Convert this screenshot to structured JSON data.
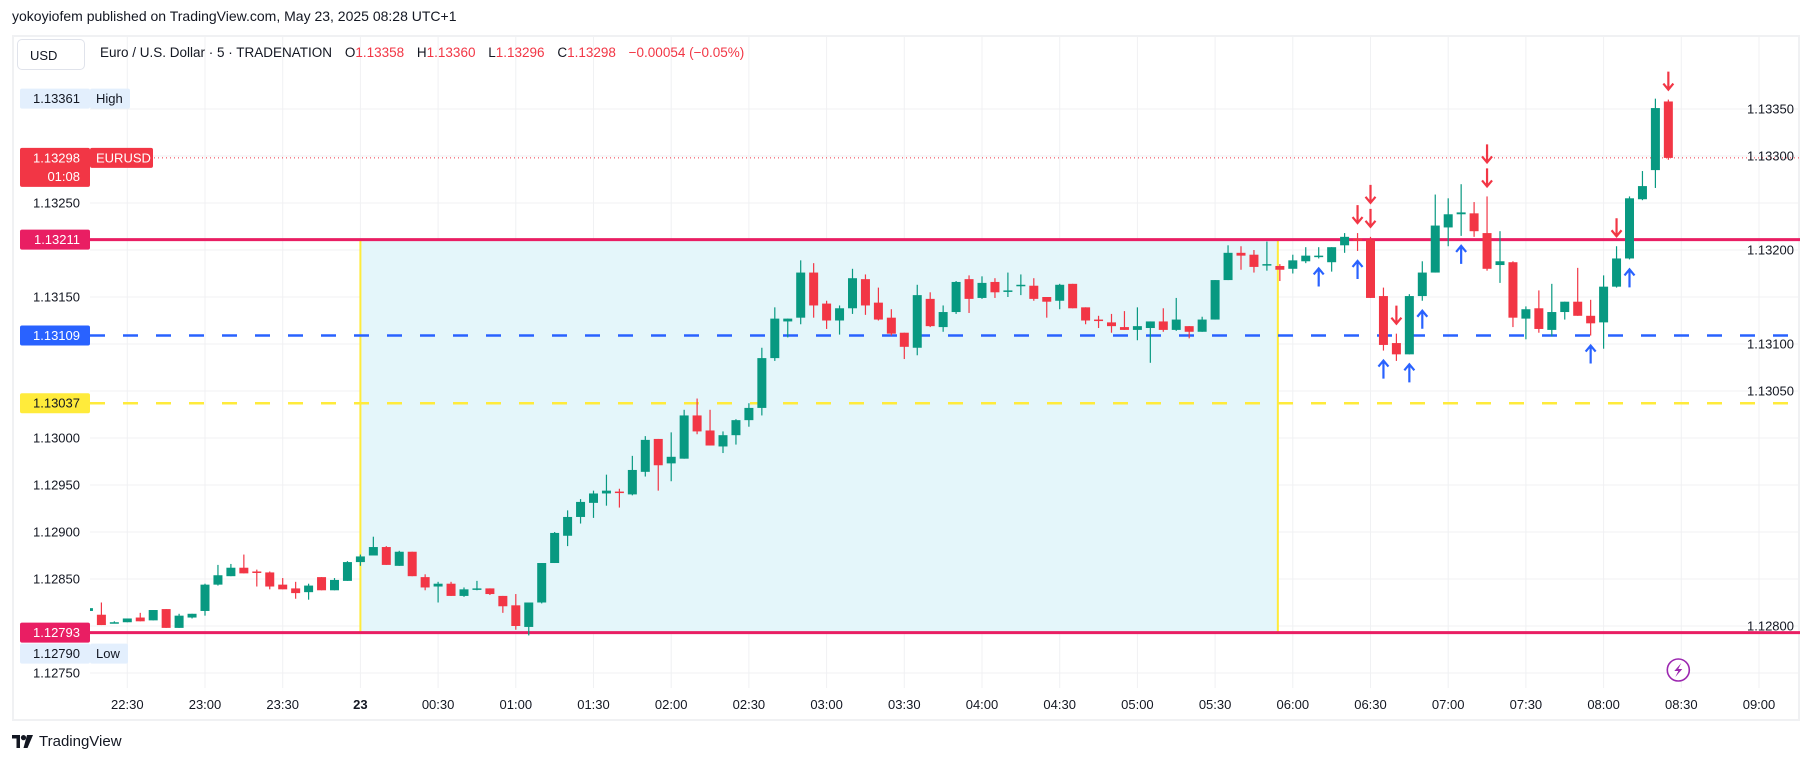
{
  "publish_info": "yokoyiofem published on TradingView.com, May 23, 2025 08:28 UTC+1",
  "header": {
    "currency_button": "USD",
    "symbol_desc": "Euro / U.S. Dollar · 5 · TRADENATION",
    "o_label": "O",
    "o": "1.13358",
    "h_label": "H",
    "h": "1.13360",
    "l_label": "L",
    "l": "1.13296",
    "c_label": "C",
    "c": "1.13298",
    "change": "−0.00054 (−0.05%)"
  },
  "price_labels": {
    "high": {
      "value": "1.13361",
      "tag": "High"
    },
    "low": {
      "value": "1.12790",
      "tag": "Low"
    },
    "current": {
      "value": "1.13298",
      "countdown": "01:08",
      "tag": "EURUSD"
    }
  },
  "horizontal_lines": [
    {
      "price": 1.13211,
      "label": "1.13211",
      "color": "#e91e63",
      "style": "solid",
      "text_color": "#ffffff"
    },
    {
      "price": 1.13109,
      "label": "1.13109",
      "color": "#2962ff",
      "style": "dashed",
      "text_color": "#ffffff"
    },
    {
      "price": 1.13037,
      "label": "1.13037",
      "color": "#ffeb3b",
      "style": "dashed",
      "text_color": "#131722"
    },
    {
      "price": 1.12793,
      "label": "1.12793",
      "color": "#e91e63",
      "style": "solid",
      "text_color": "#ffffff"
    }
  ],
  "zone": {
    "start": "00:00",
    "end": "05:55",
    "top": 1.13211,
    "bottom": 1.12793,
    "fill": "#e4f6fa",
    "border": "#ffeb3b"
  },
  "colors": {
    "up": "#089981",
    "down": "#f23645",
    "arrow_up": "#2962ff",
    "arrow_down": "#f23645",
    "grid": "#f0f1f3",
    "icon": "#9c27b0"
  },
  "footer": {
    "brand": "TradingView"
  },
  "chart_data": {
    "type": "candlestick",
    "title": "Euro / U.S. Dollar · 5 · TRADENATION",
    "symbol": "EURUSD",
    "interval_minutes": 5,
    "y_axis_position": "left",
    "ylim": [
      1.1273,
      1.1338
    ],
    "y_ticks": [
      "1.12750",
      "1.12800",
      "1.12850",
      "1.12900",
      "1.12950",
      "1.13000",
      "1.13050",
      "1.13100",
      "1.13150",
      "1.13200",
      "1.13250",
      "1.13300",
      "1.13350"
    ],
    "x_ticks": [
      {
        "label": "22:30",
        "time": "22:30"
      },
      {
        "label": "23:00",
        "time": "23:00"
      },
      {
        "label": "23:30",
        "time": "23:30"
      },
      {
        "label": "23",
        "time": "00:00",
        "bold": true
      },
      {
        "label": "00:30",
        "time": "00:30"
      },
      {
        "label": "01:00",
        "time": "01:00"
      },
      {
        "label": "01:30",
        "time": "01:30"
      },
      {
        "label": "02:00",
        "time": "02:00"
      },
      {
        "label": "02:30",
        "time": "02:30"
      },
      {
        "label": "03:00",
        "time": "03:00"
      },
      {
        "label": "03:30",
        "time": "03:30"
      },
      {
        "label": "04:00",
        "time": "04:00"
      },
      {
        "label": "04:30",
        "time": "04:30"
      },
      {
        "label": "05:00",
        "time": "05:00"
      },
      {
        "label": "05:30",
        "time": "05:30"
      },
      {
        "label": "06:00",
        "time": "06:00"
      },
      {
        "label": "06:30",
        "time": "06:30"
      },
      {
        "label": "07:00",
        "time": "07:00"
      },
      {
        "label": "07:30",
        "time": "07:30"
      },
      {
        "label": "08:00",
        "time": "08:00"
      },
      {
        "label": "08:30",
        "time": "08:30"
      },
      {
        "label": "09:00",
        "time": "09:00"
      }
    ],
    "grid": true,
    "columns": [
      "time",
      "open",
      "high",
      "low",
      "close"
    ],
    "candles": [
      [
        "22:15",
        1.12816,
        1.1282,
        1.12815,
        1.12819
      ],
      [
        "22:20",
        1.12812,
        1.12825,
        1.12801,
        1.12801
      ],
      [
        "22:25",
        1.12803,
        1.12805,
        1.12803,
        1.12804
      ],
      [
        "22:30",
        1.12804,
        1.12808,
        1.12804,
        1.12808
      ],
      [
        "22:35",
        1.12809,
        1.12814,
        1.12805,
        1.12805
      ],
      [
        "22:40",
        1.12806,
        1.12817,
        1.12806,
        1.12817
      ],
      [
        "22:45",
        1.12818,
        1.12818,
        1.12798,
        1.12798
      ],
      [
        "22:50",
        1.12798,
        1.12813,
        1.12798,
        1.12811
      ],
      [
        "22:55",
        1.12809,
        1.12813,
        1.12808,
        1.12813
      ],
      [
        "23:00",
        1.12816,
        1.12845,
        1.12811,
        1.12844
      ],
      [
        "23:05",
        1.12844,
        1.12865,
        1.12843,
        1.12854
      ],
      [
        "23:10",
        1.12853,
        1.12866,
        1.12853,
        1.12862
      ],
      [
        "23:15",
        1.12862,
        1.12876,
        1.12856,
        1.12856
      ],
      [
        "23:20",
        1.12858,
        1.1286,
        1.12842,
        1.12857
      ],
      [
        "23:25",
        1.12857,
        1.12858,
        1.12839,
        1.12842
      ],
      [
        "23:30",
        1.12844,
        1.12851,
        1.12839,
        1.12839
      ],
      [
        "23:35",
        1.1284,
        1.12847,
        1.12829,
        1.12835
      ],
      [
        "23:40",
        1.12836,
        1.12845,
        1.12828,
        1.12843
      ],
      [
        "23:45",
        1.12852,
        1.12852,
        1.12838,
        1.12838
      ],
      [
        "23:50",
        1.12838,
        1.12851,
        1.12838,
        1.12849
      ],
      [
        "23:55",
        1.12848,
        1.12869,
        1.12848,
        1.12868
      ],
      [
        "00:00",
        1.12868,
        1.12876,
        1.12864,
        1.12874
      ],
      [
        "00:05",
        1.12875,
        1.12895,
        1.12875,
        1.12884
      ],
      [
        "00:10",
        1.12884,
        1.12885,
        1.12865,
        1.12865
      ],
      [
        "00:15",
        1.12864,
        1.1288,
        1.12864,
        1.12879
      ],
      [
        "00:20",
        1.12879,
        1.12879,
        1.12853,
        1.12853
      ],
      [
        "00:25",
        1.12852,
        1.12855,
        1.12838,
        1.12841
      ],
      [
        "00:30",
        1.12842,
        1.12847,
        1.12825,
        1.12845
      ],
      [
        "00:35",
        1.12845,
        1.12847,
        1.12832,
        1.12832
      ],
      [
        "00:40",
        1.12832,
        1.12841,
        1.12831,
        1.12839
      ],
      [
        "00:45",
        1.12839,
        1.12848,
        1.12838,
        1.1284
      ],
      [
        "00:50",
        1.1284,
        1.1284,
        1.12833,
        1.12834
      ],
      [
        "00:55",
        1.12832,
        1.12832,
        1.12814,
        1.12821
      ],
      [
        "01:00",
        1.12822,
        1.12834,
        1.12796,
        1.128
      ],
      [
        "01:05",
        1.12799,
        1.12825,
        1.1279,
        1.12825
      ],
      [
        "01:10",
        1.12825,
        1.12867,
        1.12824,
        1.12867
      ],
      [
        "01:15",
        1.12867,
        1.129,
        1.12867,
        1.12899
      ],
      [
        "01:20",
        1.12896,
        1.12923,
        1.12885,
        1.12916
      ],
      [
        "01:25",
        1.12916,
        1.12935,
        1.12909,
        1.12932
      ],
      [
        "01:30",
        1.12931,
        1.12944,
        1.12915,
        1.12941
      ],
      [
        "01:35",
        1.12941,
        1.12961,
        1.12928,
        1.12944
      ],
      [
        "01:40",
        1.12943,
        1.12946,
        1.12926,
        1.12942
      ],
      [
        "01:45",
        1.1294,
        1.12981,
        1.12939,
        1.12966
      ],
      [
        "01:50",
        1.12964,
        1.13002,
        1.12959,
        1.12998
      ],
      [
        "01:55",
        1.12999,
        1.12999,
        1.12944,
        1.12971
      ],
      [
        "02:00",
        1.12973,
        1.13006,
        1.12954,
        1.1298
      ],
      [
        "02:05",
        1.12978,
        1.1303,
        1.12978,
        1.13024
      ],
      [
        "02:10",
        1.13024,
        1.13042,
        1.13004,
        1.13007
      ],
      [
        "02:15",
        1.13008,
        1.1303,
        1.12992,
        1.12992
      ],
      [
        "02:20",
        1.12991,
        1.13007,
        1.12984,
        1.13003
      ],
      [
        "02:25",
        1.13003,
        1.1302,
        1.12993,
        1.13019
      ],
      [
        "02:30",
        1.13019,
        1.13037,
        1.13012,
        1.13032
      ],
      [
        "02:35",
        1.13032,
        1.13096,
        1.13024,
        1.13085
      ],
      [
        "02:40",
        1.13085,
        1.13139,
        1.13082,
        1.13127
      ],
      [
        "02:45",
        1.13124,
        1.13127,
        1.13107,
        1.13127
      ],
      [
        "02:50",
        1.13128,
        1.13189,
        1.13121,
        1.13176
      ],
      [
        "02:55",
        1.13176,
        1.13186,
        1.13128,
        1.13141
      ],
      [
        "03:00",
        1.13143,
        1.13146,
        1.13116,
        1.13125
      ],
      [
        "03:05",
        1.13125,
        1.13141,
        1.1311,
        1.13138
      ],
      [
        "03:10",
        1.13138,
        1.1318,
        1.13132,
        1.1317
      ],
      [
        "03:15",
        1.13169,
        1.13174,
        1.13131,
        1.13141
      ],
      [
        "03:20",
        1.13144,
        1.1316,
        1.13125,
        1.13126
      ],
      [
        "03:25",
        1.13128,
        1.13137,
        1.13109,
        1.13111
      ],
      [
        "03:30",
        1.13112,
        1.13112,
        1.13084,
        1.13097
      ],
      [
        "03:35",
        1.13096,
        1.13163,
        1.13088,
        1.13152
      ],
      [
        "03:40",
        1.13148,
        1.13155,
        1.13118,
        1.13119
      ],
      [
        "03:45",
        1.13118,
        1.13141,
        1.13113,
        1.13134
      ],
      [
        "03:50",
        1.13134,
        1.13167,
        1.13132,
        1.13166
      ],
      [
        "03:55",
        1.13169,
        1.13173,
        1.13133,
        1.13148
      ],
      [
        "04:00",
        1.13149,
        1.13172,
        1.13148,
        1.13165
      ],
      [
        "04:05",
        1.13166,
        1.1317,
        1.13149,
        1.13155
      ],
      [
        "04:10",
        1.13157,
        1.13176,
        1.1315,
        1.13157
      ],
      [
        "04:15",
        1.13162,
        1.13174,
        1.13152,
        1.13163
      ],
      [
        "04:20",
        1.13162,
        1.1317,
        1.13146,
        1.13148
      ],
      [
        "04:25",
        1.1315,
        1.1315,
        1.13128,
        1.13145
      ],
      [
        "04:30",
        1.13146,
        1.13164,
        1.13137,
        1.13163
      ],
      [
        "04:35",
        1.13164,
        1.13164,
        1.13138,
        1.13138
      ],
      [
        "04:40",
        1.13139,
        1.13139,
        1.13121,
        1.13125
      ],
      [
        "04:45",
        1.13126,
        1.1313,
        1.13117,
        1.13125
      ],
      [
        "04:50",
        1.13123,
        1.13132,
        1.13112,
        1.13119
      ],
      [
        "04:55",
        1.13118,
        1.13135,
        1.13115,
        1.13115
      ],
      [
        "05:00",
        1.13115,
        1.13139,
        1.13104,
        1.13119
      ],
      [
        "05:05",
        1.13117,
        1.13124,
        1.1308,
        1.13124
      ],
      [
        "05:10",
        1.13124,
        1.13138,
        1.13113,
        1.13115
      ],
      [
        "05:15",
        1.13115,
        1.13149,
        1.13114,
        1.13126
      ],
      [
        "05:20",
        1.13119,
        1.13119,
        1.13106,
        1.13113
      ],
      [
        "05:25",
        1.13113,
        1.13129,
        1.13113,
        1.13126
      ],
      [
        "05:30",
        1.13126,
        1.13168,
        1.13126,
        1.13168
      ],
      [
        "05:35",
        1.13168,
        1.13205,
        1.13168,
        1.13197
      ],
      [
        "05:40",
        1.13197,
        1.13204,
        1.13179,
        1.13194
      ],
      [
        "05:45",
        1.13195,
        1.132,
        1.13176,
        1.13182
      ],
      [
        "05:50",
        1.13184,
        1.13209,
        1.13178,
        1.13185
      ],
      [
        "05:55",
        1.13183,
        1.13185,
        1.13167,
        1.13179
      ],
      [
        "06:00",
        1.1318,
        1.13195,
        1.13175,
        1.13189
      ],
      [
        "06:05",
        1.13188,
        1.13203,
        1.13186,
        1.13194
      ],
      [
        "06:10",
        1.13193,
        1.13203,
        1.13191,
        1.13194
      ],
      [
        "06:15",
        1.13187,
        1.13203,
        1.13177,
        1.13203
      ],
      [
        "06:20",
        1.13205,
        1.13218,
        1.13197,
        1.13214
      ],
      [
        "06:25",
        1.13212,
        1.13218,
        1.13199,
        1.1321
      ],
      [
        "06:30",
        1.13211,
        1.13214,
        1.13149,
        1.13149
      ],
      [
        "06:35",
        1.13151,
        1.1316,
        1.13093,
        1.13099
      ],
      [
        "06:40",
        1.13101,
        1.13111,
        1.13082,
        1.13089
      ],
      [
        "06:45",
        1.13089,
        1.13153,
        1.13089,
        1.13151
      ],
      [
        "06:50",
        1.13151,
        1.13188,
        1.13146,
        1.13176
      ],
      [
        "06:55",
        1.13176,
        1.13259,
        1.13176,
        1.13226
      ],
      [
        "07:00",
        1.13224,
        1.13255,
        1.13204,
        1.13238
      ],
      [
        "07:05",
        1.13238,
        1.1327,
        1.13215,
        1.1324
      ],
      [
        "07:10",
        1.13239,
        1.13251,
        1.13214,
        1.1322
      ],
      [
        "07:15",
        1.13218,
        1.13257,
        1.13178,
        1.1318
      ],
      [
        "07:20",
        1.13184,
        1.1322,
        1.13165,
        1.13188
      ],
      [
        "07:25",
        1.13187,
        1.13188,
        1.13118,
        1.13128
      ],
      [
        "07:30",
        1.13127,
        1.1314,
        1.13105,
        1.13137
      ],
      [
        "07:35",
        1.13138,
        1.13157,
        1.13112,
        1.13116
      ],
      [
        "07:40",
        1.13115,
        1.13164,
        1.13108,
        1.13134
      ],
      [
        "07:45",
        1.13134,
        1.13145,
        1.13126,
        1.13145
      ],
      [
        "07:50",
        1.13145,
        1.13181,
        1.1313,
        1.1313
      ],
      [
        "07:55",
        1.1313,
        1.13147,
        1.13109,
        1.13122
      ],
      [
        "08:00",
        1.13123,
        1.13173,
        1.13095,
        1.13161
      ],
      [
        "08:05",
        1.13161,
        1.13204,
        1.1316,
        1.13191
      ],
      [
        "08:10",
        1.13191,
        1.13257,
        1.1319,
        1.13255
      ],
      [
        "08:15",
        1.13254,
        1.13284,
        1.13253,
        1.13268
      ],
      [
        "08:20",
        1.13285,
        1.13361,
        1.13266,
        1.13351
      ],
      [
        "08:25",
        1.13358,
        1.1336,
        1.13296,
        1.13298
      ]
    ],
    "signals": [
      {
        "time": "06:10",
        "dir": "up",
        "count": 1
      },
      {
        "time": "06:25",
        "dir": "up",
        "count": 1
      },
      {
        "time": "06:35",
        "dir": "up",
        "count": 1
      },
      {
        "time": "06:45",
        "dir": "up",
        "count": 1
      },
      {
        "time": "06:50",
        "dir": "up",
        "count": 1
      },
      {
        "time": "07:05",
        "dir": "up",
        "count": 1
      },
      {
        "time": "07:55",
        "dir": "up",
        "count": 1
      },
      {
        "time": "08:10",
        "dir": "up",
        "count": 1
      },
      {
        "time": "06:25",
        "dir": "down",
        "count": 1
      },
      {
        "time": "06:30",
        "dir": "down",
        "count": 2
      },
      {
        "time": "06:40",
        "dir": "down",
        "count": 1
      },
      {
        "time": "07:15",
        "dir": "down",
        "count": 2
      },
      {
        "time": "08:05",
        "dir": "down",
        "count": 1
      },
      {
        "time": "08:25",
        "dir": "down",
        "count": 1
      }
    ],
    "event_marker": {
      "time": "08:30",
      "icon": "lightning-icon"
    }
  }
}
